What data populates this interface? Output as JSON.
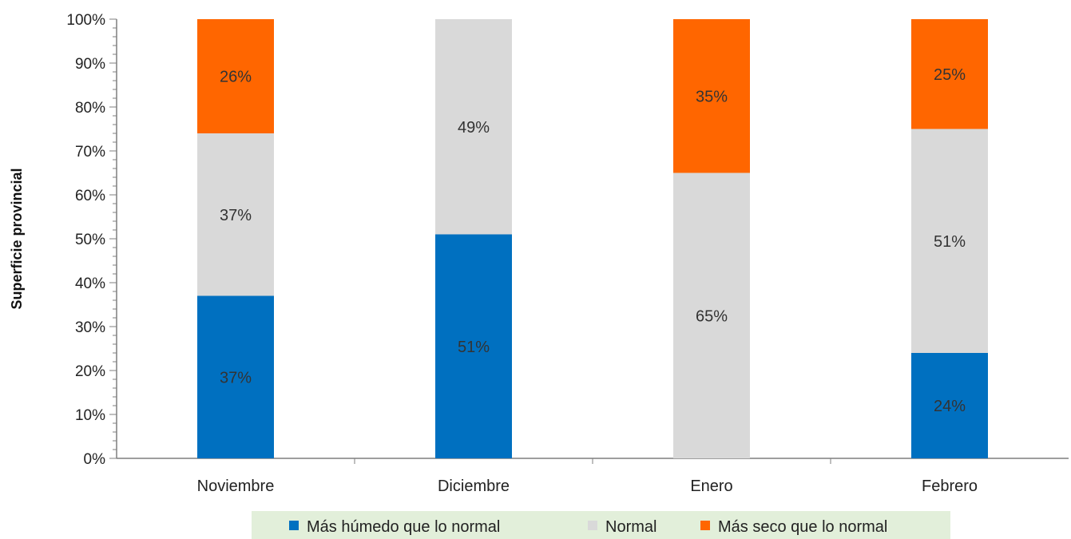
{
  "chart_data": {
    "type": "bar",
    "stacked": true,
    "categories": [
      "Noviembre",
      "Diciembre",
      "Enero",
      "Febrero"
    ],
    "series": [
      {
        "name": "Más húmedo que lo normal",
        "color": "#0070C0",
        "values": [
          37,
          51,
          0,
          24
        ]
      },
      {
        "name": "Normal",
        "color": "#D9D9D9",
        "values": [
          37,
          49,
          65,
          51
        ]
      },
      {
        "name": "Más seco que lo normal",
        "color": "#FF6600",
        "values": [
          26,
          0,
          35,
          25
        ]
      }
    ],
    "data_labels": [
      [
        "37%",
        "51%",
        "",
        "24%"
      ],
      [
        "37%",
        "49%",
        "65%",
        "51%"
      ],
      [
        "26%",
        "",
        "35%",
        "25%"
      ]
    ],
    "ylabel": "Superficie provincial",
    "ylim": [
      0,
      100
    ],
    "yticks": [
      "0%",
      "10%",
      "20%",
      "30%",
      "40%",
      "50%",
      "60%",
      "70%",
      "80%",
      "90%",
      "100%"
    ],
    "grid": false,
    "legend_position": "bottom",
    "legend_background": "#E2EFDA"
  }
}
